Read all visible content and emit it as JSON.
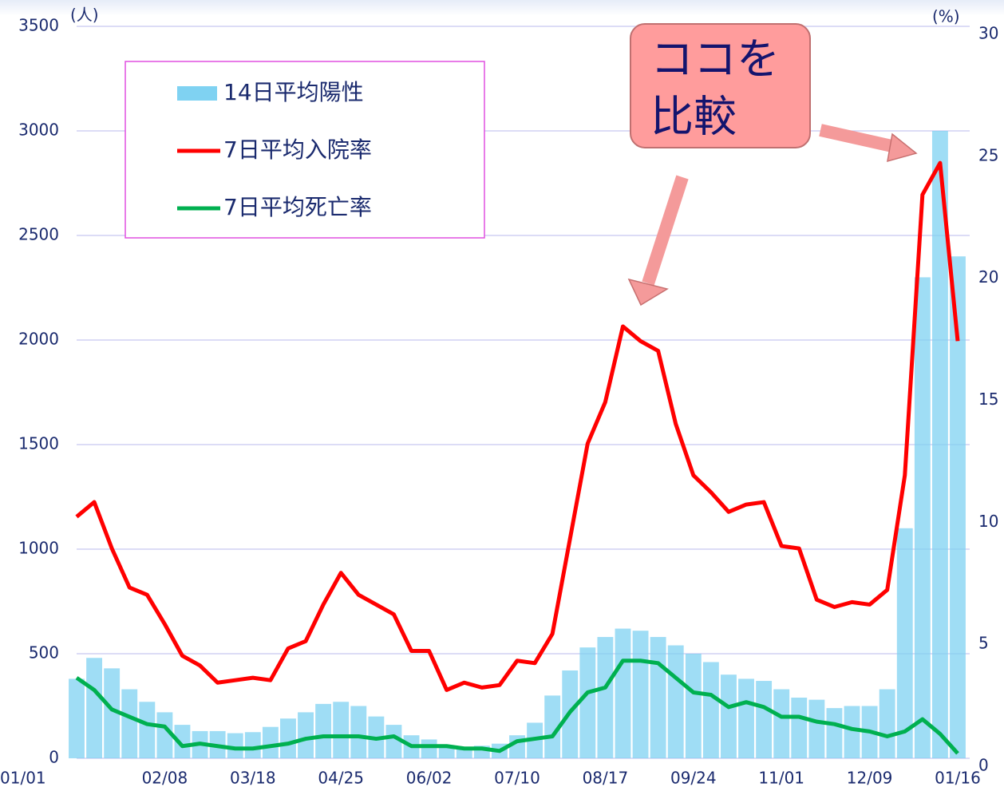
{
  "chart_data": {
    "type": "bar_line",
    "y_unit": "(人)",
    "y2_unit": "(%)",
    "annotation": [
      "ココを",
      "比較"
    ],
    "categories": [
      "01/01",
      null,
      null,
      null,
      null,
      "02/08",
      null,
      null,
      null,
      null,
      "03/18",
      null,
      null,
      null,
      null,
      "04/25",
      null,
      null,
      null,
      null,
      "06/02",
      null,
      null,
      null,
      null,
      "07/10",
      null,
      null,
      null,
      null,
      "08/17",
      null,
      null,
      null,
      null,
      "09/24",
      null,
      null,
      null,
      null,
      "11/01",
      null,
      null,
      null,
      null,
      "12/09",
      null,
      null,
      null,
      null,
      "01/16"
    ],
    "series": [
      {
        "name": "14日平均陽性",
        "type": "bar",
        "color": "#7fd2f2",
        "values": [
          380,
          480,
          430,
          330,
          270,
          220,
          160,
          130,
          130,
          120,
          125,
          150,
          190,
          220,
          260,
          270,
          250,
          200,
          160,
          110,
          90,
          60,
          50,
          60,
          70,
          110,
          170,
          300,
          420,
          530,
          580,
          620,
          610,
          580,
          540,
          500,
          460,
          400,
          380,
          370,
          330,
          290,
          280,
          240,
          250,
          250,
          330,
          1100,
          2300,
          3000,
          2400
        ]
      },
      {
        "name": "7日平均入院率",
        "type": "line",
        "axis": "y2",
        "color": "#ff0000",
        "values": [
          9.9,
          10.5,
          8.6,
          7.0,
          6.7,
          5.5,
          4.2,
          3.8,
          3.1,
          3.2,
          3.3,
          3.2,
          4.5,
          4.8,
          6.3,
          7.6,
          6.7,
          6.3,
          5.9,
          4.4,
          4.4,
          2.8,
          3.1,
          2.9,
          3.0,
          4.0,
          3.9,
          5.1,
          9.0,
          12.9,
          14.6,
          17.7,
          17.1,
          16.7,
          13.7,
          11.6,
          10.9,
          10.1,
          10.4,
          10.5,
          8.7,
          8.6,
          6.5,
          6.2,
          6.4,
          6.3,
          6.9,
          11.6,
          23.1,
          24.4,
          17.1
        ]
      },
      {
        "name": "7日平均死亡率",
        "type": "line",
        "axis": "y2",
        "color": "#00b050",
        "values": [
          3.3,
          2.8,
          2.0,
          1.7,
          1.4,
          1.3,
          0.5,
          0.6,
          0.5,
          0.4,
          0.4,
          0.5,
          0.6,
          0.8,
          0.9,
          0.9,
          0.9,
          0.8,
          0.9,
          0.5,
          0.5,
          0.5,
          0.4,
          0.4,
          0.3,
          0.7,
          0.8,
          0.9,
          1.9,
          2.7,
          2.9,
          4.0,
          4.0,
          3.9,
          3.3,
          2.7,
          2.6,
          2.1,
          2.3,
          2.1,
          1.7,
          1.7,
          1.5,
          1.4,
          1.2,
          1.1,
          0.9,
          1.1,
          1.6,
          1.0,
          0.2
        ]
      }
    ],
    "ylim": [
      0,
      3500
    ],
    "yticks": [
      0,
      500,
      1000,
      1500,
      2000,
      2500,
      3000,
      3500
    ],
    "y2lim": [
      0,
      30
    ],
    "y2ticks": [
      0,
      5,
      10,
      15,
      20,
      25,
      30
    ],
    "grid": true,
    "legend": "upper left"
  }
}
